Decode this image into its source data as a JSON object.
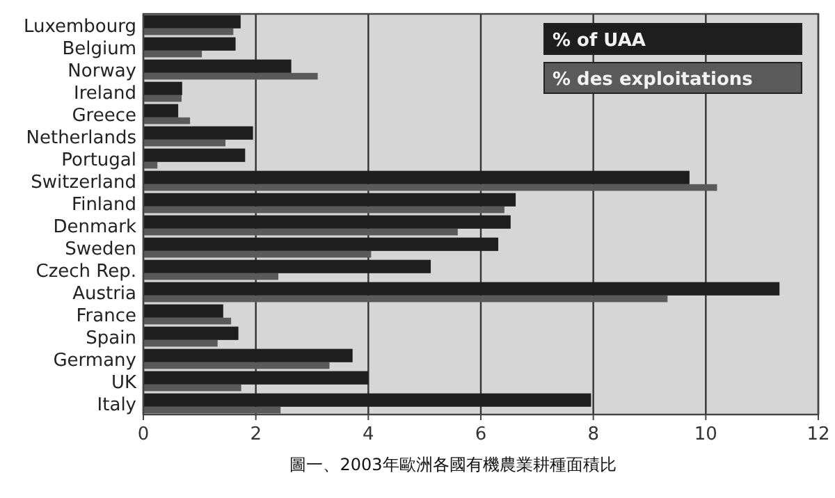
{
  "chart_data": {
    "type": "bar",
    "orientation": "horizontal",
    "title": "圖一、2003年歐洲各國有機農業耕種面積比",
    "categories": [
      "Luxembourg",
      "Belgium",
      "Norway",
      "Ireland",
      "Greece",
      "Netherlands",
      "Portugal",
      "Switzerland",
      "Finland",
      "Denmark",
      "Sweden",
      "Czech Rep.",
      "Austria",
      "France",
      "Spain",
      "Germany",
      "UK",
      "Italy"
    ],
    "series": [
      {
        "name": "% of UAA",
        "color": "#1e1e1e",
        "values": [
          1.73,
          1.64,
          2.63,
          0.69,
          0.62,
          1.95,
          1.81,
          9.71,
          6.62,
          6.53,
          6.31,
          5.11,
          11.31,
          1.42,
          1.69,
          3.72,
          4.0,
          7.96
        ]
      },
      {
        "name": "% des exploitations",
        "color": "#5a5a5a",
        "values": [
          1.6,
          1.04,
          3.1,
          0.68,
          0.83,
          1.46,
          0.25,
          10.2,
          6.42,
          5.59,
          4.05,
          2.4,
          9.32,
          1.56,
          1.32,
          3.31,
          1.74,
          2.44
        ]
      }
    ],
    "xlim": [
      0,
      12
    ],
    "xticks": [
      0,
      2,
      4,
      6,
      8,
      10,
      12
    ],
    "grid": "x",
    "legend": "top right"
  }
}
